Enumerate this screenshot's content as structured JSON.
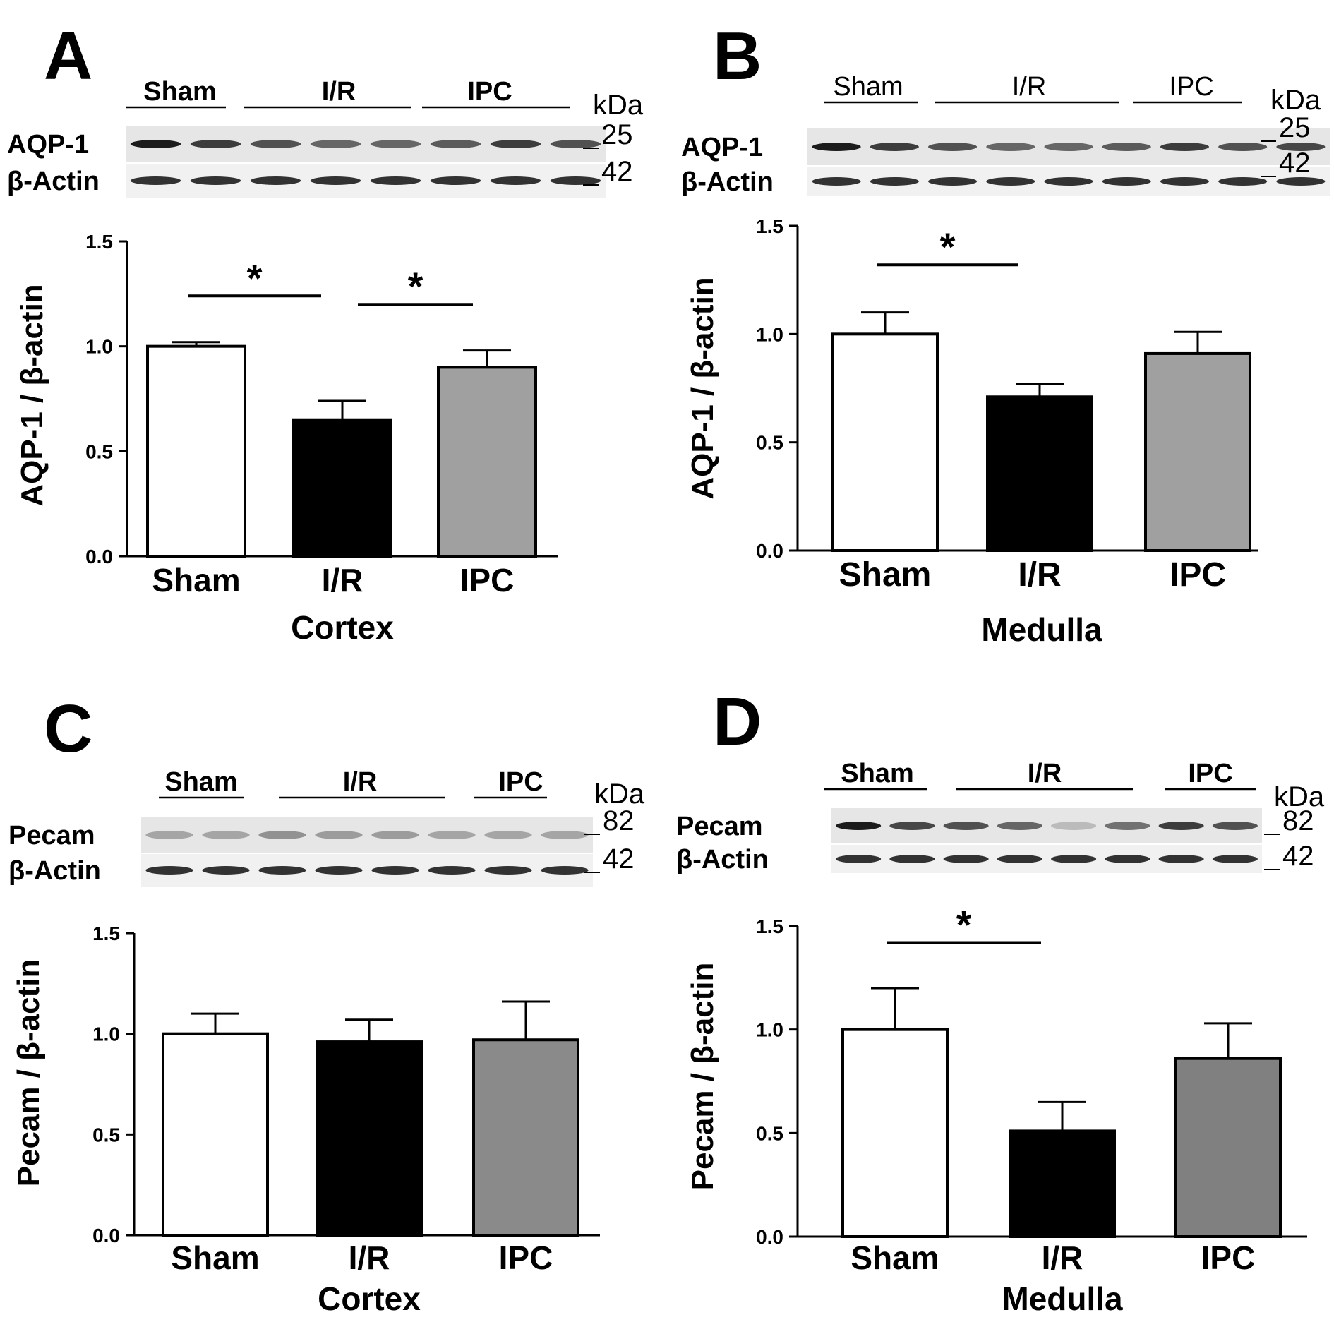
{
  "chart_data": [
    {
      "panel": "A",
      "type": "bar",
      "categories": [
        "Sham",
        "I/R",
        "IPC"
      ],
      "values": [
        1.0,
        0.65,
        0.9
      ],
      "errors": [
        0.02,
        0.09,
        0.08
      ],
      "colors": [
        "#ffffff",
        "#000000",
        "#a0a0a0"
      ],
      "ylim": [
        0,
        1.5
      ],
      "yticks": [
        "0.0",
        "0.5",
        "1.0",
        "1.5"
      ],
      "ylabel": "AQP-1 / β-actin",
      "xlabel": "Cortex",
      "significance": [
        {
          "from": "Sham",
          "to": "I/R",
          "label": "*"
        },
        {
          "from": "I/R",
          "to": "IPC",
          "label": "*"
        }
      ],
      "blot": {
        "groups": [
          "Sham",
          "I/R",
          "IPC"
        ],
        "rows": [
          "AQP-1",
          "β-Actin"
        ],
        "unit": "kDa",
        "markers": [
          "25",
          "42"
        ]
      }
    },
    {
      "panel": "B",
      "type": "bar",
      "categories": [
        "Sham",
        "I/R",
        "IPC"
      ],
      "values": [
        1.0,
        0.71,
        0.91
      ],
      "errors": [
        0.1,
        0.06,
        0.1
      ],
      "colors": [
        "#ffffff",
        "#000000",
        "#a0a0a0"
      ],
      "ylim": [
        0,
        1.5
      ],
      "yticks": [
        "0.0",
        "0.5",
        "1.0",
        "1.5"
      ],
      "ylabel": "AQP-1 / β-actin",
      "xlabel": "Medulla",
      "significance": [
        {
          "from": "Sham",
          "to": "I/R",
          "label": "*"
        }
      ],
      "blot": {
        "groups": [
          "Sham",
          "I/R",
          "IPC"
        ],
        "rows": [
          "AQP-1",
          "β-Actin"
        ],
        "unit": "kDa",
        "markers": [
          "25",
          "42"
        ]
      }
    },
    {
      "panel": "C",
      "type": "bar",
      "categories": [
        "Sham",
        "I/R",
        "IPC"
      ],
      "values": [
        1.0,
        0.96,
        0.97
      ],
      "errors": [
        0.1,
        0.11,
        0.19
      ],
      "colors": [
        "#ffffff",
        "#000000",
        "#8a8a8a"
      ],
      "ylim": [
        0,
        1.5
      ],
      "yticks": [
        "0.0",
        "0.5",
        "1.0",
        "1.5"
      ],
      "ylabel": "Pecam / β-actin",
      "xlabel": "Cortex",
      "significance": [],
      "blot": {
        "groups": [
          "Sham",
          "I/R",
          "IPC"
        ],
        "rows": [
          "Pecam",
          "β-Actin"
        ],
        "unit": "kDa",
        "markers": [
          "82",
          "42"
        ]
      }
    },
    {
      "panel": "D",
      "type": "bar",
      "categories": [
        "Sham",
        "I/R",
        "IPC"
      ],
      "values": [
        1.0,
        0.51,
        0.86
      ],
      "errors": [
        0.2,
        0.14,
        0.17
      ],
      "colors": [
        "#ffffff",
        "#000000",
        "#808080"
      ],
      "ylim": [
        0,
        1.5
      ],
      "yticks": [
        "0.0",
        "0.5",
        "1.0",
        "1.5"
      ],
      "ylabel": "Pecam / β-actin",
      "xlabel": "Medulla",
      "significance": [
        {
          "from": "Sham",
          "to": "I/R",
          "label": "*"
        }
      ],
      "blot": {
        "groups": [
          "Sham",
          "I/R",
          "IPC"
        ],
        "rows": [
          "Pecam",
          "β-Actin"
        ],
        "unit": "kDa",
        "markers": [
          "82",
          "42"
        ]
      }
    }
  ]
}
